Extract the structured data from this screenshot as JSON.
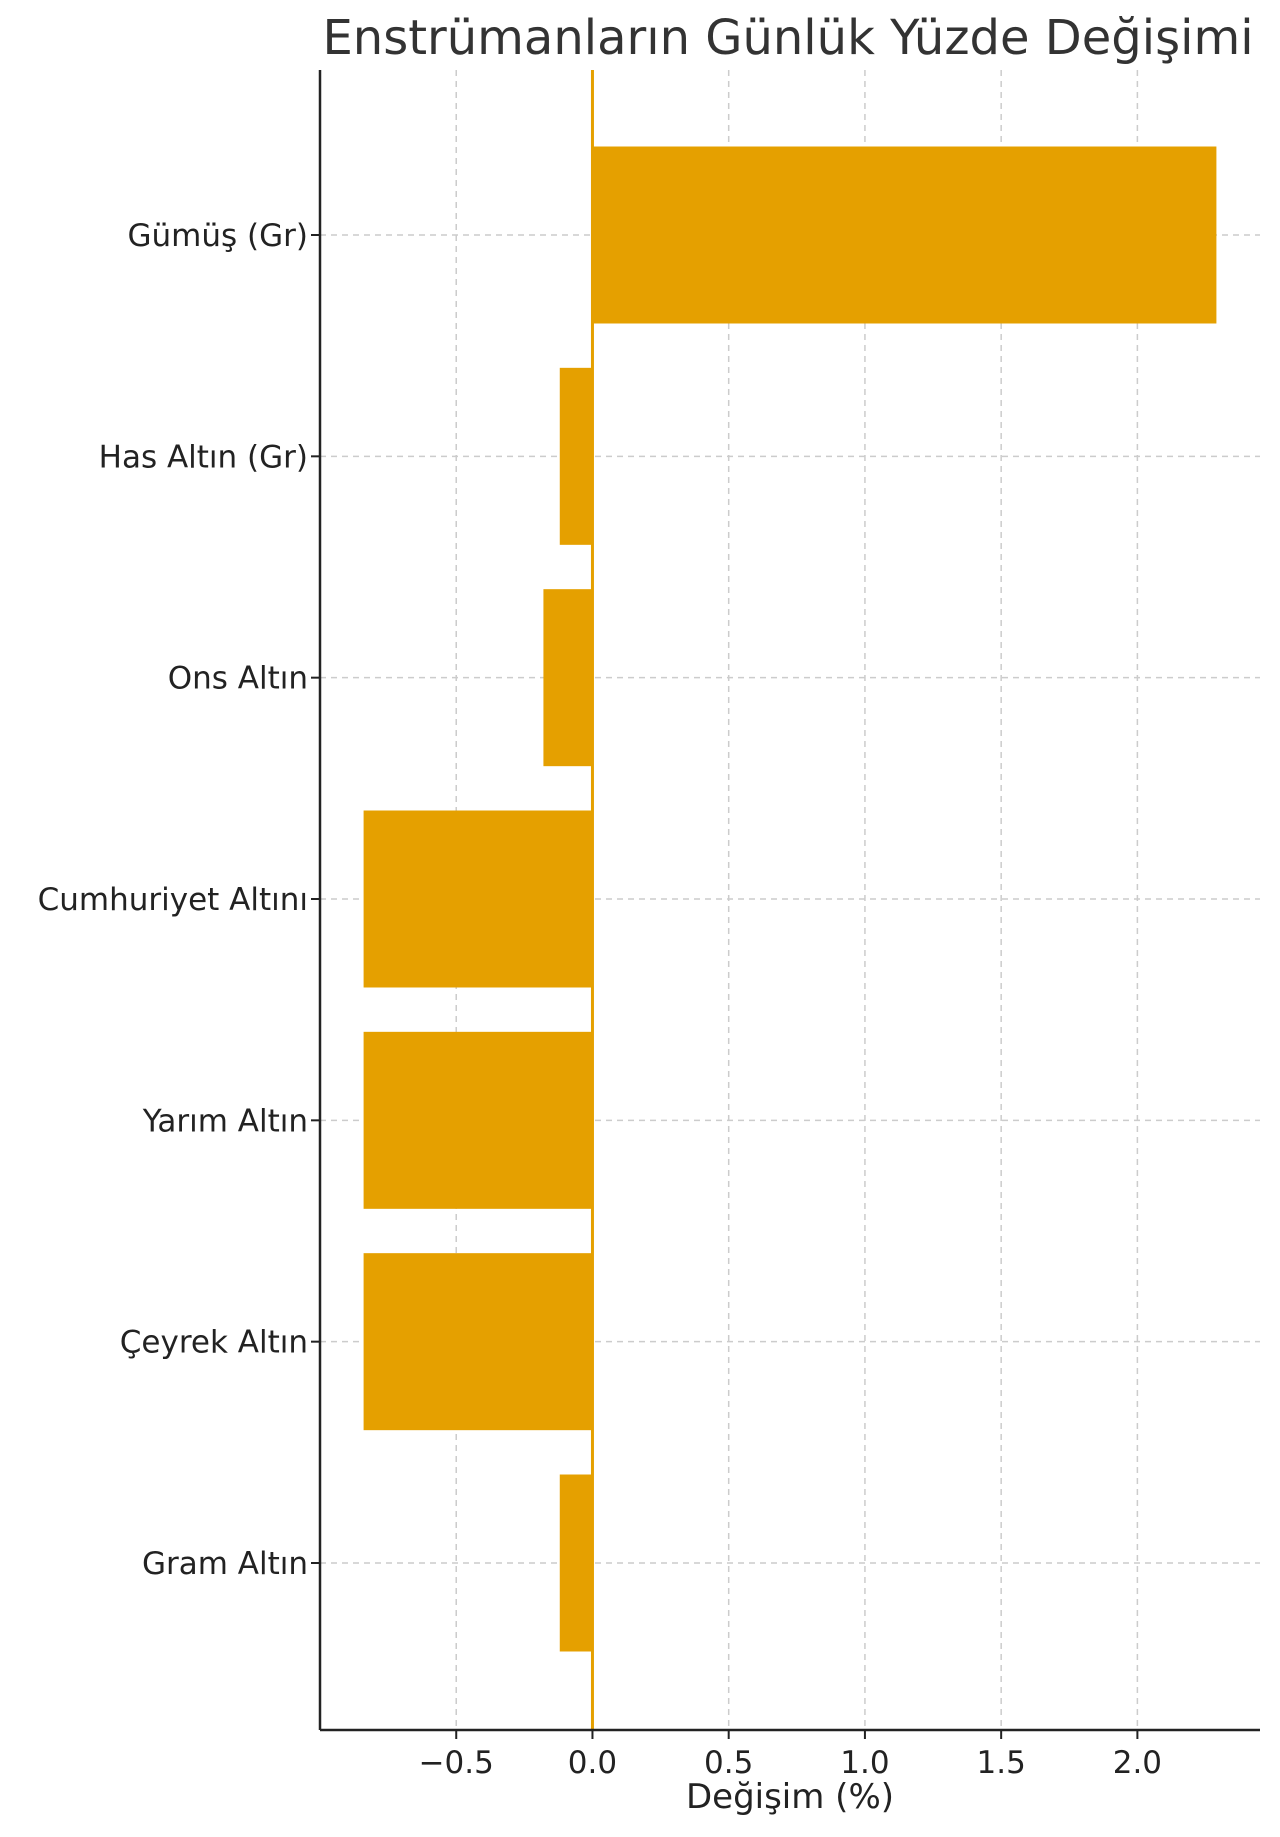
{
  "chart_data": {
    "type": "bar",
    "orientation": "horizontal",
    "title": "Enstrümanların Günlük Yüzde Değişimi",
    "xlabel": "Değişim (%)",
    "ylabel": "",
    "categories": [
      "Gümüş (Gr)",
      "Has Altın (Gr)",
      "Ons Altın",
      "Cumhuriyet Altını",
      "Yarım Altın",
      "Çeyrek Altın",
      "Gram Altın"
    ],
    "values": [
      2.29,
      -0.12,
      -0.18,
      -0.84,
      -0.84,
      -0.84,
      -0.12
    ],
    "xlim": [
      -1.0,
      2.45
    ],
    "xticks": [
      -0.5,
      0.0,
      0.5,
      1.0,
      1.5,
      2.0
    ],
    "xtick_labels": [
      "−0.5",
      "0.0",
      "0.5",
      "1.0",
      "1.5",
      "2.0"
    ],
    "grid": true,
    "bar_color": "#E5A000",
    "zero_line_color": "#E5A000"
  }
}
